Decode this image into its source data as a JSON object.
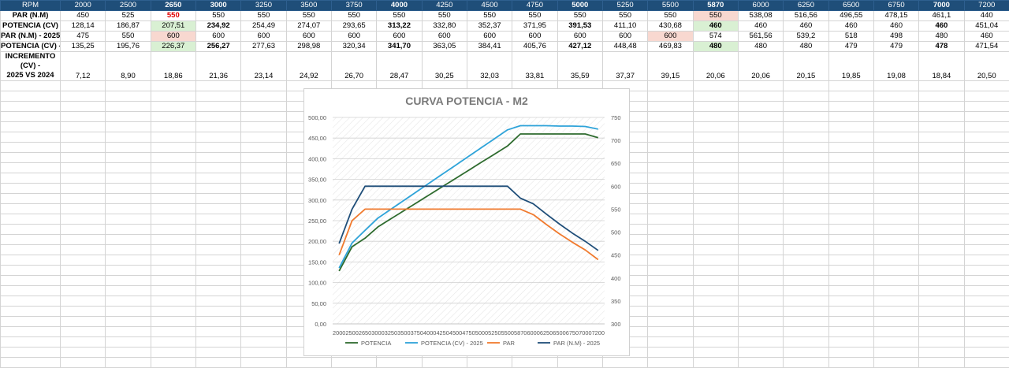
{
  "table": {
    "header_label": "RPM",
    "rpm": [
      "2000",
      "2500",
      "2650",
      "3000",
      "3250",
      "3500",
      "3750",
      "4000",
      "4250",
      "4500",
      "4750",
      "5000",
      "5250",
      "5500",
      "5870",
      "6000",
      "6250",
      "6500",
      "6750",
      "7000",
      "7200"
    ],
    "rows": [
      {
        "label": "PAR (N.M)",
        "values": [
          "450",
          "525",
          "550",
          "550",
          "550",
          "550",
          "550",
          "550",
          "550",
          "550",
          "550",
          "550",
          "550",
          "550",
          "550",
          "538,08",
          "516,56",
          "496,55",
          "478,15",
          "461,1",
          "440"
        ]
      },
      {
        "label": "POTENCIA (CV)",
        "values": [
          "128,14",
          "186,87",
          "207,51",
          "234,92",
          "254,49",
          "274,07",
          "293,65",
          "313,22",
          "332,80",
          "352,37",
          "371,95",
          "391,53",
          "411,10",
          "430,68",
          "460",
          "460",
          "460",
          "460",
          "460",
          "460",
          "451,04"
        ]
      },
      {
        "label": "PAR (N.M) - 2025",
        "values": [
          "475",
          "550",
          "600",
          "600",
          "600",
          "600",
          "600",
          "600",
          "600",
          "600",
          "600",
          "600",
          "600",
          "600",
          "574",
          "561,56",
          "539,2",
          "518",
          "498",
          "480",
          "460"
        ]
      },
      {
        "label": "POTENCIA (CV) - 2025",
        "values": [
          "135,25",
          "195,76",
          "226,37",
          "256,27",
          "277,63",
          "298,98",
          "320,34",
          "341,70",
          "363,05",
          "384,41",
          "405,76",
          "427,12",
          "448,48",
          "469,83",
          "480",
          "480",
          "480",
          "479",
          "479",
          "478",
          "471,54"
        ]
      },
      {
        "label": "INCREMENTO (CV) - 2025 VS 2024",
        "label_line1": "INCREMENTO (CV) -",
        "label_line2": "2025 VS 2024",
        "values": [
          "7,12",
          "8,90",
          "18,86",
          "21,36",
          "23,14",
          "24,92",
          "26,70",
          "28,47",
          "30,25",
          "32,03",
          "33,81",
          "35,59",
          "37,37",
          "39,15",
          "20,06",
          "20,06",
          "20,15",
          "19,85",
          "19,08",
          "18,84",
          "20,50"
        ]
      }
    ]
  },
  "colors": {
    "header_bg": "#1f4e79",
    "green_cell": "#d9f0d3",
    "pink_cell": "#f8d8d0",
    "red_text": "#e00000"
  },
  "chart_data": {
    "type": "line",
    "title": "CURVA POTENCIA - M2",
    "categories": [
      "2000",
      "2500",
      "2650",
      "3000",
      "3250",
      "3500",
      "3750",
      "4000",
      "4250",
      "4500",
      "4750",
      "5000",
      "5250",
      "5500",
      "5870",
      "6000",
      "6250",
      "6500",
      "6750",
      "7000",
      "7200"
    ],
    "y_left": {
      "min": 0,
      "max": 500,
      "step": 50,
      "tick_labels": [
        "0,00",
        "50,00",
        "100,00",
        "150,00",
        "200,00",
        "250,00",
        "300,00",
        "350,00",
        "400,00",
        "450,00",
        "500,00"
      ]
    },
    "y_right": {
      "min": 300,
      "max": 750,
      "step": 50,
      "tick_labels": [
        "300",
        "350",
        "400",
        "450",
        "500",
        "550",
        "600",
        "650",
        "700",
        "750"
      ]
    },
    "series": [
      {
        "name": "POTENCIA",
        "axis": "left",
        "color": "#2e6b2e",
        "values": [
          128.14,
          186.87,
          207.51,
          234.92,
          254.49,
          274.07,
          293.65,
          313.22,
          332.8,
          352.37,
          371.95,
          391.53,
          411.1,
          430.68,
          460,
          460,
          460,
          460,
          460,
          460,
          451.04
        ]
      },
      {
        "name": "POTENCIA (CV) - 2025",
        "axis": "left",
        "color": "#2ea3d9",
        "values": [
          135.25,
          195.76,
          226.37,
          256.27,
          277.63,
          298.98,
          320.34,
          341.7,
          363.05,
          384.41,
          405.76,
          427.12,
          448.48,
          469.83,
          480,
          480,
          480,
          479,
          479,
          478,
          471.54
        ]
      },
      {
        "name": "PAR",
        "axis": "right",
        "color": "#f07a2e",
        "values": [
          450,
          525,
          550,
          550,
          550,
          550,
          550,
          550,
          550,
          550,
          550,
          550,
          550,
          550,
          550,
          538.08,
          516.56,
          496.55,
          478.15,
          461.1,
          440
        ]
      },
      {
        "name": "PAR (N.M) - 2025",
        "axis": "right",
        "color": "#1f4e79",
        "values": [
          475,
          550,
          600,
          600,
          600,
          600,
          600,
          600,
          600,
          600,
          600,
          600,
          600,
          600,
          574,
          561.56,
          539.2,
          518,
          498,
          480,
          460
        ]
      }
    ],
    "legend_position": "bottom",
    "grid": "horizontal"
  }
}
